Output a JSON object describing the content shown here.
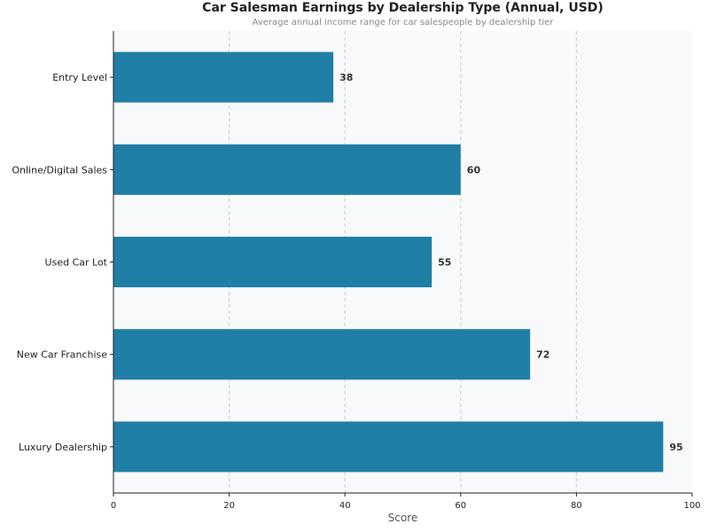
{
  "chart_data": {
    "type": "bar",
    "orientation": "horizontal",
    "title": "Car Salesman Earnings by Dealership Type (Annual, USD)",
    "subtitle": "Average annual income range for car salespeople by dealership tier",
    "xlabel": "Score",
    "ylabel": "",
    "xlim": [
      0,
      100
    ],
    "xticks": [
      0,
      20,
      40,
      60,
      80,
      100
    ],
    "categories": [
      "Entry Level",
      "Online/Digital Sales",
      "Used Car Lot",
      "New Car Franchise",
      "Luxury Dealership"
    ],
    "values": [
      38,
      60,
      55,
      72,
      95
    ],
    "grid": "x dashed",
    "bar_color": "#1f7fa6",
    "background": "#f8f9fb"
  }
}
